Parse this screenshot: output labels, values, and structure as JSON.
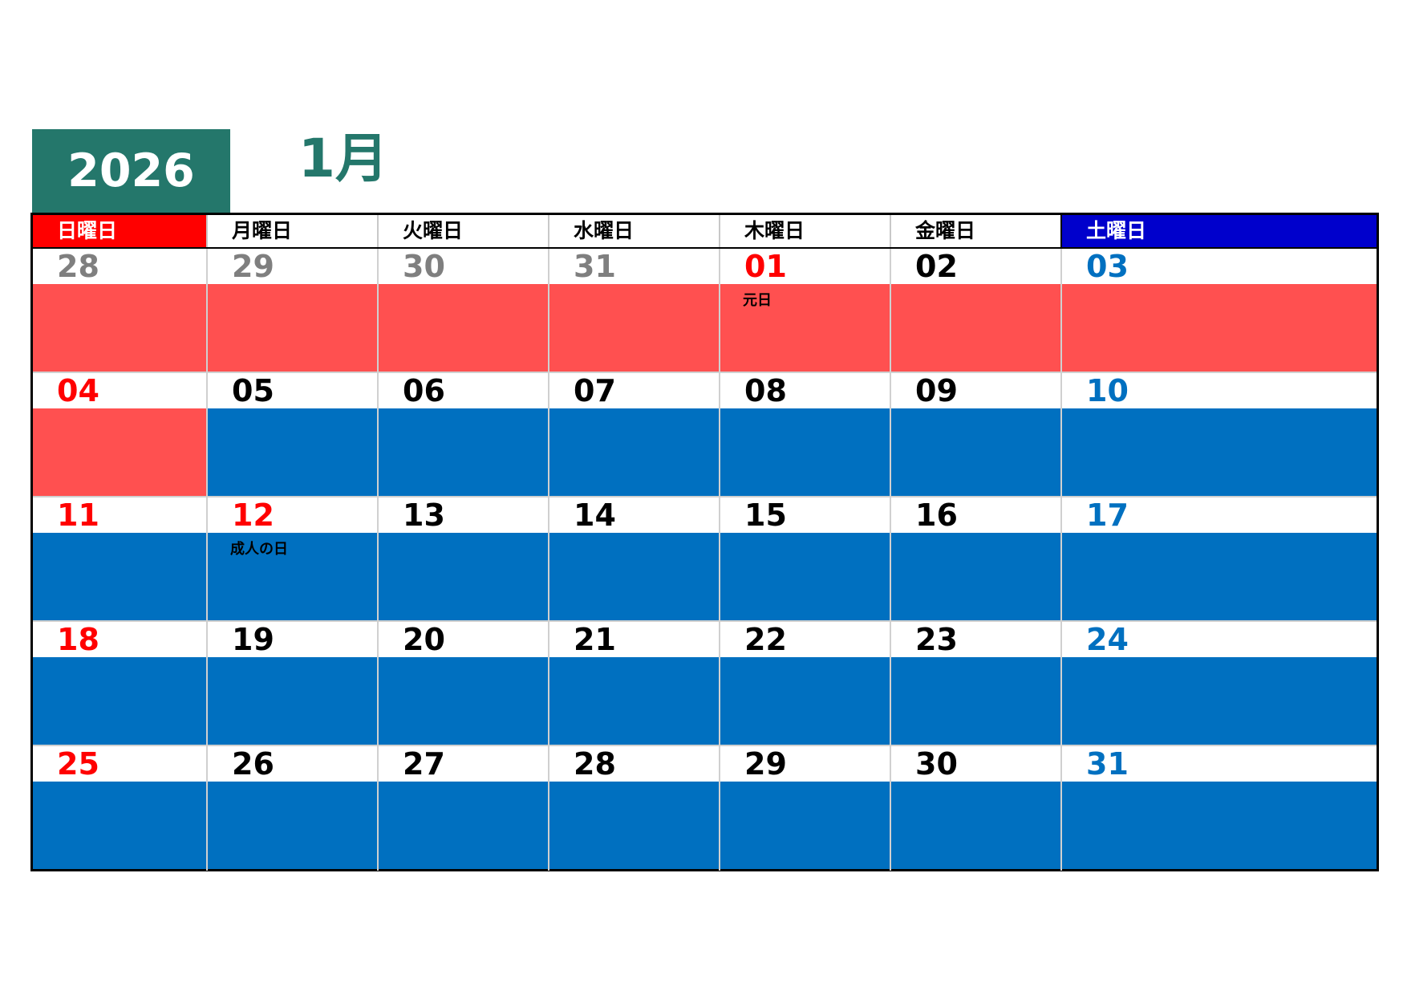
{
  "header": {
    "year": "2026",
    "month": "1月"
  },
  "weekdays": [
    {
      "label": "日曜日",
      "kind": "sun"
    },
    {
      "label": "月曜日",
      "kind": "weekday"
    },
    {
      "label": "火曜日",
      "kind": "weekday"
    },
    {
      "label": "水曜日",
      "kind": "weekday"
    },
    {
      "label": "木曜日",
      "kind": "weekday"
    },
    {
      "label": "金曜日",
      "kind": "weekday"
    },
    {
      "label": "土曜日",
      "kind": "sat"
    }
  ],
  "colors": {
    "title_green": "#24776b",
    "sunday_header": "#ff0000",
    "saturday_header": "#0000cc",
    "holiday_fill": "#ff5050",
    "memo_fill": "#0070c0",
    "other_month_text": "#7f7f7f",
    "holiday_text": "#ff0000",
    "saturday_text": "#0070c0"
  },
  "weeks": [
    [
      {
        "day": "28",
        "style": "gray",
        "fill": "holiday",
        "note": ""
      },
      {
        "day": "29",
        "style": "gray",
        "fill": "holiday",
        "note": ""
      },
      {
        "day": "30",
        "style": "gray",
        "fill": "holiday",
        "note": ""
      },
      {
        "day": "31",
        "style": "gray",
        "fill": "holiday",
        "note": ""
      },
      {
        "day": "01",
        "style": "red",
        "fill": "holiday",
        "note": "元日"
      },
      {
        "day": "02",
        "style": "black",
        "fill": "holiday",
        "note": ""
      },
      {
        "day": "03",
        "style": "blue",
        "fill": "holiday",
        "note": ""
      }
    ],
    [
      {
        "day": "04",
        "style": "red",
        "fill": "holiday",
        "note": ""
      },
      {
        "day": "05",
        "style": "black",
        "fill": "normal",
        "note": ""
      },
      {
        "day": "06",
        "style": "black",
        "fill": "normal",
        "note": ""
      },
      {
        "day": "07",
        "style": "black",
        "fill": "normal",
        "note": ""
      },
      {
        "day": "08",
        "style": "black",
        "fill": "normal",
        "note": ""
      },
      {
        "day": "09",
        "style": "black",
        "fill": "normal",
        "note": ""
      },
      {
        "day": "10",
        "style": "blue",
        "fill": "normal",
        "note": ""
      }
    ],
    [
      {
        "day": "11",
        "style": "red",
        "fill": "normal",
        "note": ""
      },
      {
        "day": "12",
        "style": "red",
        "fill": "normal",
        "note": "成人の日"
      },
      {
        "day": "13",
        "style": "black",
        "fill": "normal",
        "note": ""
      },
      {
        "day": "14",
        "style": "black",
        "fill": "normal",
        "note": ""
      },
      {
        "day": "15",
        "style": "black",
        "fill": "normal",
        "note": ""
      },
      {
        "day": "16",
        "style": "black",
        "fill": "normal",
        "note": ""
      },
      {
        "day": "17",
        "style": "blue",
        "fill": "normal",
        "note": ""
      }
    ],
    [
      {
        "day": "18",
        "style": "red",
        "fill": "normal",
        "note": ""
      },
      {
        "day": "19",
        "style": "black",
        "fill": "normal",
        "note": ""
      },
      {
        "day": "20",
        "style": "black",
        "fill": "normal",
        "note": ""
      },
      {
        "day": "21",
        "style": "black",
        "fill": "normal",
        "note": ""
      },
      {
        "day": "22",
        "style": "black",
        "fill": "normal",
        "note": ""
      },
      {
        "day": "23",
        "style": "black",
        "fill": "normal",
        "note": ""
      },
      {
        "day": "24",
        "style": "blue",
        "fill": "normal",
        "note": ""
      }
    ],
    [
      {
        "day": "25",
        "style": "red",
        "fill": "normal",
        "note": ""
      },
      {
        "day": "26",
        "style": "black",
        "fill": "normal",
        "note": ""
      },
      {
        "day": "27",
        "style": "black",
        "fill": "normal",
        "note": ""
      },
      {
        "day": "28",
        "style": "black",
        "fill": "normal",
        "note": ""
      },
      {
        "day": "29",
        "style": "black",
        "fill": "normal",
        "note": ""
      },
      {
        "day": "30",
        "style": "black",
        "fill": "normal",
        "note": ""
      },
      {
        "day": "31",
        "style": "blue",
        "fill": "normal",
        "note": ""
      }
    ]
  ]
}
